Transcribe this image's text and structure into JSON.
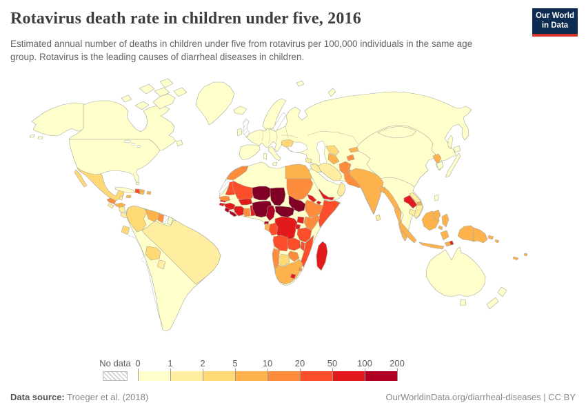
{
  "header": {
    "title": "Rotavirus death rate in children under five, 2016",
    "subtitle": "Estimated annual number of deaths in children under five from rotavirus per 100,000 individuals in the same age group. Rotavirus is the leading causes of diarrheal diseases in children.",
    "logo": {
      "line1": "Our World",
      "line2": "in Data",
      "bg_color": "#0e2b52",
      "accent_color": "#d13328"
    }
  },
  "legend": {
    "no_data_label": "No data",
    "tick_labels": [
      "0",
      "1",
      "2",
      "5",
      "10",
      "20",
      "50",
      "100",
      "200"
    ],
    "bin_colors": [
      "#ffffcc",
      "#ffeda0",
      "#fed976",
      "#feb24c",
      "#fd8d3c",
      "#fc4e2a",
      "#e31a1c",
      "#b10026"
    ]
  },
  "map": {
    "palette": {
      "p0": "#ffffcc",
      "p1": "#ffeda0",
      "p2": "#fed976",
      "p3": "#feb24c",
      "p4": "#fd8d3c",
      "p5": "#fc4e2a",
      "p6": "#e31a1c",
      "p7": "#b10026",
      "p8": "#800026",
      "border": "#a7a79c",
      "ocean": "#ffffff"
    },
    "no_data_regions": [
      "United Kingdom",
      "Western Sahara",
      "Suriname"
    ]
  },
  "footer": {
    "source_label": "Data source:",
    "source_text": " Troeger et al. (2018)",
    "credit": "OurWorldinData.org/diarrheal-diseases | CC BY"
  },
  "chart_data": {
    "type": "choropleth",
    "title": "Rotavirus death rate in children under five, 2016",
    "unit": "deaths per 100,000 children under five",
    "year": 2016,
    "bins": [
      "0-1",
      "1-2",
      "2-5",
      "5-10",
      "10-20",
      "20-50",
      "50-100",
      "100-200+"
    ],
    "bin_colors": [
      "#ffffcc",
      "#ffeda0",
      "#fed976",
      "#feb24c",
      "#fd8d3c",
      "#fc4e2a",
      "#e31a1c",
      "#b10026"
    ],
    "regions_by_bin": {
      "0-1": [
        "United States",
        "Canada",
        "Greenland",
        "Europe",
        "Russia",
        "China",
        "Japan",
        "South Korea",
        "Mongolia",
        "Kazakhstan",
        "Turkey",
        "Saudi Arabia",
        "Australia",
        "New Zealand",
        "Argentina",
        "Chile",
        "Peru",
        "Cuba",
        "French Guiana",
        "Algeria",
        "Libya",
        "Taiwan"
      ],
      "1-2": [
        "Brazil",
        "Vietnam",
        "Cambodia",
        "Iran",
        "Iraq",
        "Syria",
        "Oman",
        "Sri Lanka",
        "Paraguay",
        "Nicaragua",
        "Costa Rica",
        "Panama",
        "El Salvador",
        "Belize"
      ],
      "2-5": [
        "Mexico",
        "Colombia",
        "Ecuador",
        "Bolivia",
        "Uzbekistan",
        "Botswana",
        "Romania"
      ],
      "5-10": [
        "India",
        "Myanmar",
        "Thailand",
        "Indonesia",
        "Philippines",
        "Malaysia",
        "Papua New Guinea",
        "Egypt",
        "Venezuela",
        "Guatemala",
        "Honduras",
        "Dominican Republic",
        "North Korea",
        "Turkmenistan",
        "Kyrgyzstan",
        "South Africa"
      ],
      "10-20": [
        "Pakistan",
        "Afghanistan",
        "Tajikistan",
        "Morocco",
        "Sudan",
        "Ethiopia",
        "Kenya",
        "Senegal",
        "Ghana",
        "Namibia",
        "Zimbabwe",
        "Guyana",
        "Haiti"
      ],
      "20-50": [
        "Mauritania",
        "Mali",
        "Somalia",
        "Tanzania",
        "Angola",
        "Zambia",
        "Malawi",
        "Mozambique",
        "Congo",
        "Laos"
      ],
      "50-100": [
        "Guinea",
        "Ivory Coast",
        "Burkina Faso",
        "Togo",
        "Benin",
        "Eritrea",
        "Djibouti",
        "Uganda",
        "Rwanda",
        "Burundi",
        "DR Congo",
        "Madagascar",
        "Lesotho",
        "Yemen",
        "Timor-Leste"
      ],
      "100-200+": [
        "Niger",
        "Chad",
        "Nigeria",
        "Central African Republic",
        "South Sudan",
        "Cameroon",
        "Sierra Leone",
        "Liberia",
        "Equatorial Guinea"
      ]
    },
    "no_data": [
      "United Kingdom",
      "Western Sahara",
      "Suriname"
    ]
  }
}
